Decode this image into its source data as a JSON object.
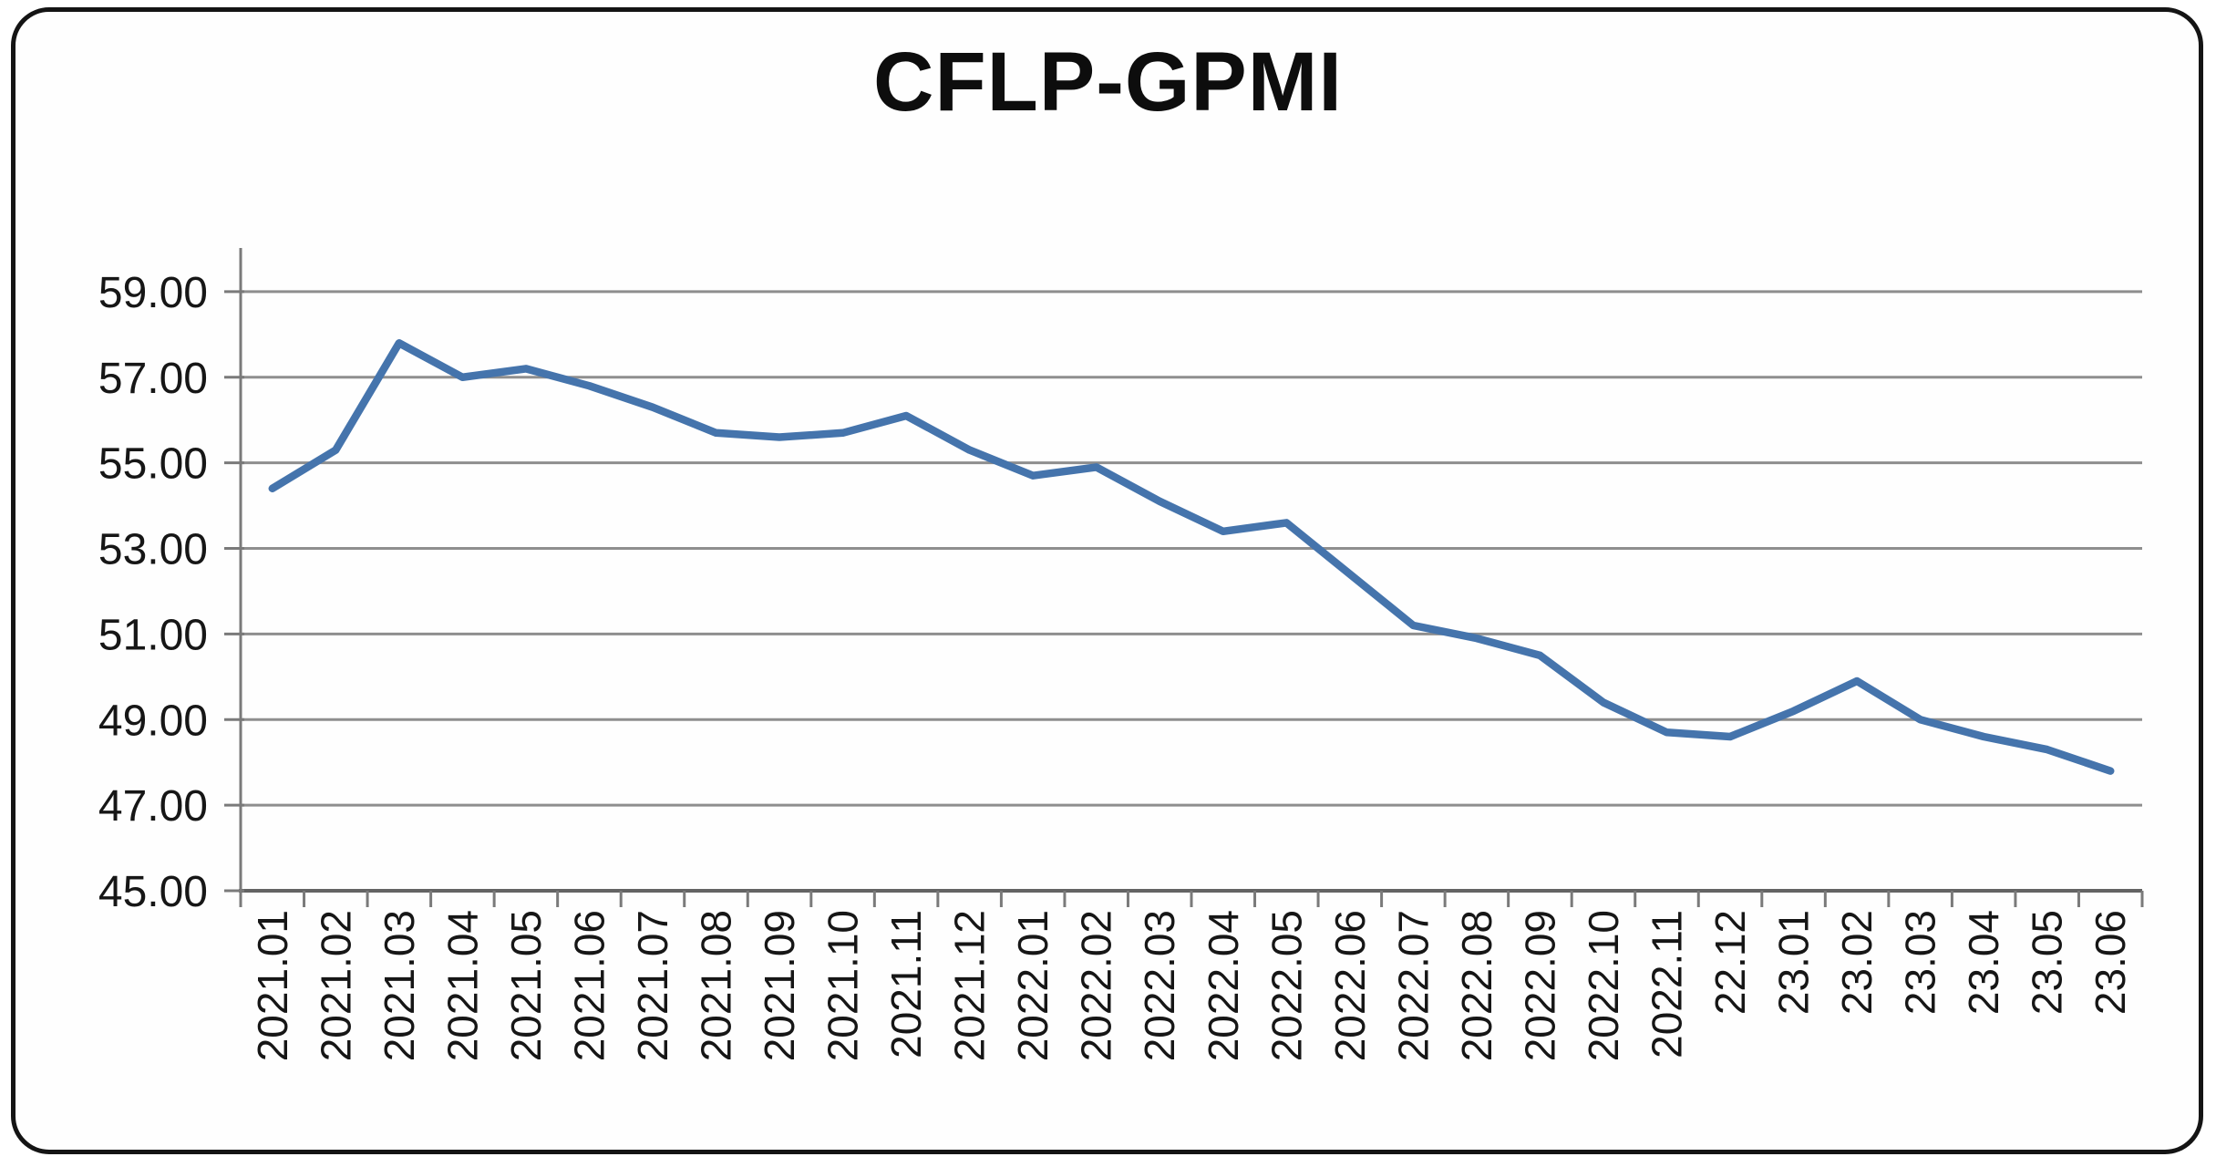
{
  "chart_data": {
    "type": "line",
    "title": "CFLP-GPMI",
    "series_name": "CFLP-GPMI",
    "categories": [
      "2021.01",
      "2021.02",
      "2021.03",
      "2021.04",
      "2021.05",
      "2021.06",
      "2021.07",
      "2021.08",
      "2021.09",
      "2021.10",
      "2021.11",
      "2021.12",
      "2022.01",
      "2022.02",
      "2022.03",
      "2022.04",
      "2022.05",
      "2022.06",
      "2022.07",
      "2022.08",
      "2022.09",
      "2022.10",
      "2022.11",
      "22.12",
      "23.01",
      "23.02",
      "23.03",
      "23.04",
      "23.05",
      "23.06"
    ],
    "values": [
      54.4,
      55.3,
      57.8,
      57.0,
      57.2,
      56.8,
      56.3,
      55.7,
      55.6,
      55.7,
      56.1,
      55.3,
      54.7,
      54.9,
      54.1,
      53.4,
      53.6,
      52.4,
      51.2,
      50.9,
      50.5,
      49.4,
      48.7,
      48.6,
      49.2,
      49.9,
      49.0,
      48.6,
      48.3,
      47.8
    ],
    "xlabel": "",
    "ylabel": "",
    "ylim": [
      45,
      60
    ],
    "ytick_step": 2,
    "ytick_labels": [
      "45.00",
      "47.00",
      "49.00",
      "51.00",
      "53.00",
      "55.00",
      "57.00",
      "59.00"
    ],
    "x_label_rotation": -90,
    "grid": true,
    "legend": false,
    "line_color": "#4574ac",
    "grid_color": "#8e8e8e",
    "axis_color": "#7a7a7a",
    "baseline_color": "#636363",
    "text_color": "#161616",
    "frame_color": "#141414",
    "background_color": "#ffffff"
  }
}
